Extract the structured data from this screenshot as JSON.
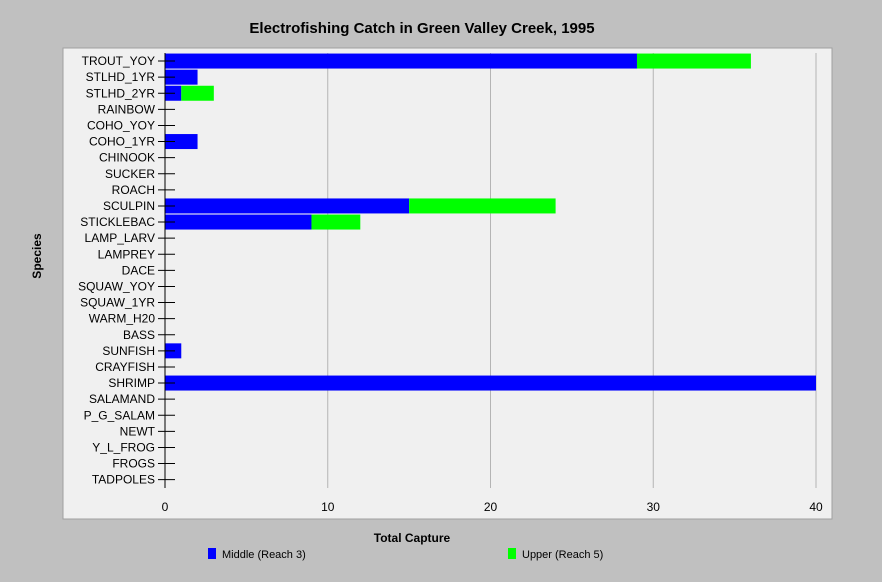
{
  "chart_data": {
    "type": "bar",
    "orientation": "horizontal",
    "stacked": true,
    "title": "Electrofishing Catch in Green Valley Creek, 1995",
    "xlabel": "Total Capture",
    "ylabel": "Species",
    "xlim": [
      0,
      40
    ],
    "x_ticks": [
      "0",
      "10",
      "20",
      "30",
      "40"
    ],
    "grid": "vertical",
    "legend_position": "bottom",
    "categories": [
      "TROUT_YOY",
      "STLHD_1YR",
      "STLHD_2YR",
      "RAINBOW",
      "COHO_YOY",
      "COHO_1YR",
      "CHINOOK",
      "SUCKER",
      "ROACH",
      "SCULPIN",
      "STICKLEBAC",
      "LAMP_LARV",
      "LAMPREY",
      "DACE",
      "SQUAW_YOY",
      "SQUAW_1YR",
      "WARM_H20",
      "BASS",
      "SUNFISH",
      "CRAYFISH",
      "SHRIMP",
      "SALAMAND",
      "P_G_SALAM",
      "NEWT",
      "Y_L_FROG",
      "FROGS",
      "TADPOLES"
    ],
    "series": [
      {
        "name": "Middle (Reach 3)",
        "color": "#0000ff",
        "values": [
          29,
          2,
          1,
          0,
          0,
          2,
          0,
          0,
          0,
          15,
          9,
          0,
          0,
          0,
          0,
          0,
          0,
          0,
          1,
          0,
          40,
          0,
          0,
          0,
          0,
          0,
          0
        ]
      },
      {
        "name": "Upper (Reach 5)",
        "color": "#00ff00",
        "values": [
          7,
          0,
          2,
          0,
          0,
          0,
          0,
          0,
          0,
          9,
          3,
          0,
          0,
          0,
          0,
          0,
          0,
          0,
          0,
          0,
          0,
          0,
          0,
          0,
          0,
          0,
          0
        ]
      }
    ]
  },
  "colors": {
    "background": "#c0c0c0",
    "plot_area": "#f0f0f0",
    "grid": "#b4b4b4"
  }
}
